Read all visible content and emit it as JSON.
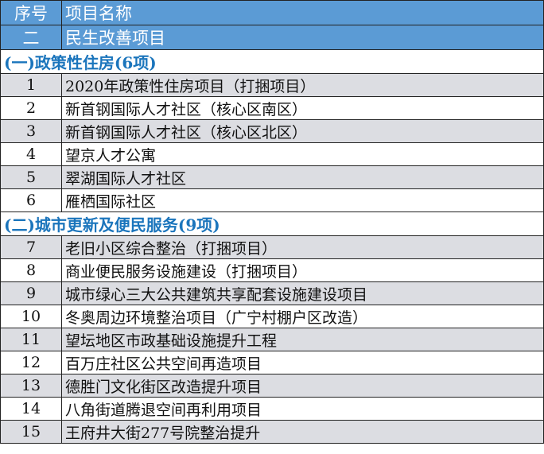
{
  "header": {
    "col1": "序号",
    "col2": "项目名称"
  },
  "category": {
    "num": "二",
    "name": "民生改善项目"
  },
  "accent_color": "#5b9bd5",
  "section_color": "#1b75bc",
  "sections": [
    {
      "title": "(一)政策性住房(6项)",
      "rows": [
        {
          "num": "1",
          "name": "2020年政策性住房项目（打捆项目）"
        },
        {
          "num": "2",
          "name": "新首钢国际人才社区（核心区南区）"
        },
        {
          "num": "3",
          "name": "新首钢国际人才社区（核心区北区）"
        },
        {
          "num": "4",
          "name": "望京人才公寓"
        },
        {
          "num": "5",
          "name": "翠湖国际人才社区"
        },
        {
          "num": "6",
          "name": "雁栖国际社区"
        }
      ]
    },
    {
      "title": "(二)城市更新及便民服务(9项)",
      "rows": [
        {
          "num": "7",
          "name": "老旧小区综合整治（打捆项目）"
        },
        {
          "num": "8",
          "name": "商业便民服务设施建设（打捆项目）"
        },
        {
          "num": "9",
          "name": "城市绿心三大公共建筑共享配套设施建设项目"
        },
        {
          "num": "10",
          "name": "冬奥周边环境整治项目（广宁村棚户区改造）"
        },
        {
          "num": "11",
          "name": "望坛地区市政基础设施提升工程"
        },
        {
          "num": "12",
          "name": "百万庄社区公共空间再造项目"
        },
        {
          "num": "13",
          "name": "德胜门文化街区改造提升项目"
        },
        {
          "num": "14",
          "name": "八角街道腾退空间再利用项目"
        },
        {
          "num": "15",
          "name": "王府井大街277号院整治提升"
        }
      ]
    }
  ]
}
